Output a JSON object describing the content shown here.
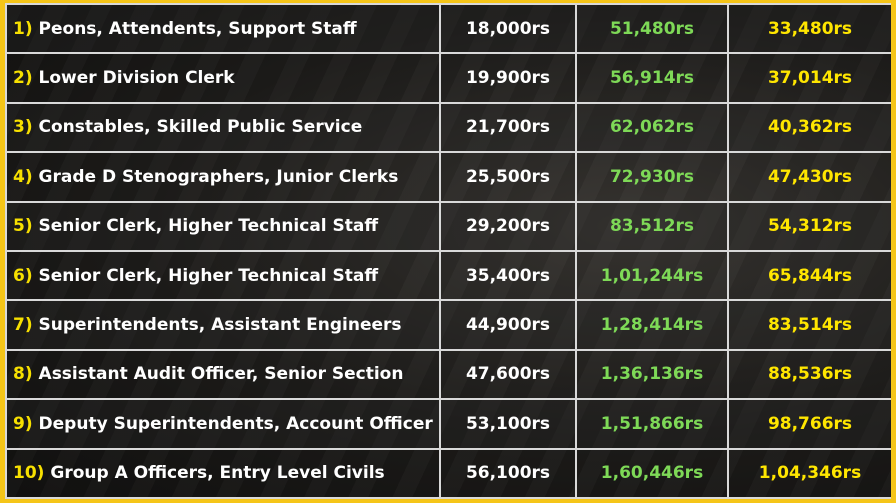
{
  "rows": [
    {
      "num": "1)",
      "post": "Peons, Attendents, Support Staff",
      "pay": "18,000rs",
      "mid": "51,480rs",
      "last": "33,480rs"
    },
    {
      "num": "2)",
      "post": "Lower Division Clerk",
      "pay": "19,900rs",
      "mid": "56,914rs",
      "last": "37,014rs"
    },
    {
      "num": "3)",
      "post": "Constables, Skilled Public Service",
      "pay": "21,700rs",
      "mid": "62,062rs",
      "last": "40,362rs"
    },
    {
      "num": "4)",
      "post": "Grade D Stenographers, Junior Clerks",
      "pay": "25,500rs",
      "mid": "72,930rs",
      "last": "47,430rs"
    },
    {
      "num": "5)",
      "post": "Senior Clerk, Higher Technical Staff",
      "pay": "29,200rs",
      "mid": "83,512rs",
      "last": "54,312rs"
    },
    {
      "num": "6)",
      "post": "Senior Clerk, Higher Technical Staff",
      "pay": "35,400rs",
      "mid": "1,01,244rs",
      "last": "65,844rs"
    },
    {
      "num": "7)",
      "post": "Superintendents, Assistant Engineers",
      "pay": "44,900rs",
      "mid": "1,28,414rs",
      "last": "83,514rs"
    },
    {
      "num": "8)",
      "post": "Assistant Audit Officer, Senior Section",
      "pay": "47,600rs",
      "mid": "1,36,136rs",
      "last": "88,536rs"
    },
    {
      "num": "9)",
      "post": "Deputy Superintendents, Account Officer",
      "pay": "53,100rs",
      "mid": "1,51,866rs",
      "last": "98,766rs"
    },
    {
      "num": "10)",
      "post": "Group A Officers, Entry Level Civils",
      "pay": "56,100rs",
      "mid": "1,60,446rs",
      "last": "1,04,346rs"
    }
  ],
  "colors": {
    "frame": "#f5c518",
    "number": "#f7e000",
    "post_text": "#ffffff",
    "pay_text": "#ffffff",
    "mid_text": "#7ed957",
    "last_text": "#ffe600",
    "grid": "#d9d9d9"
  }
}
